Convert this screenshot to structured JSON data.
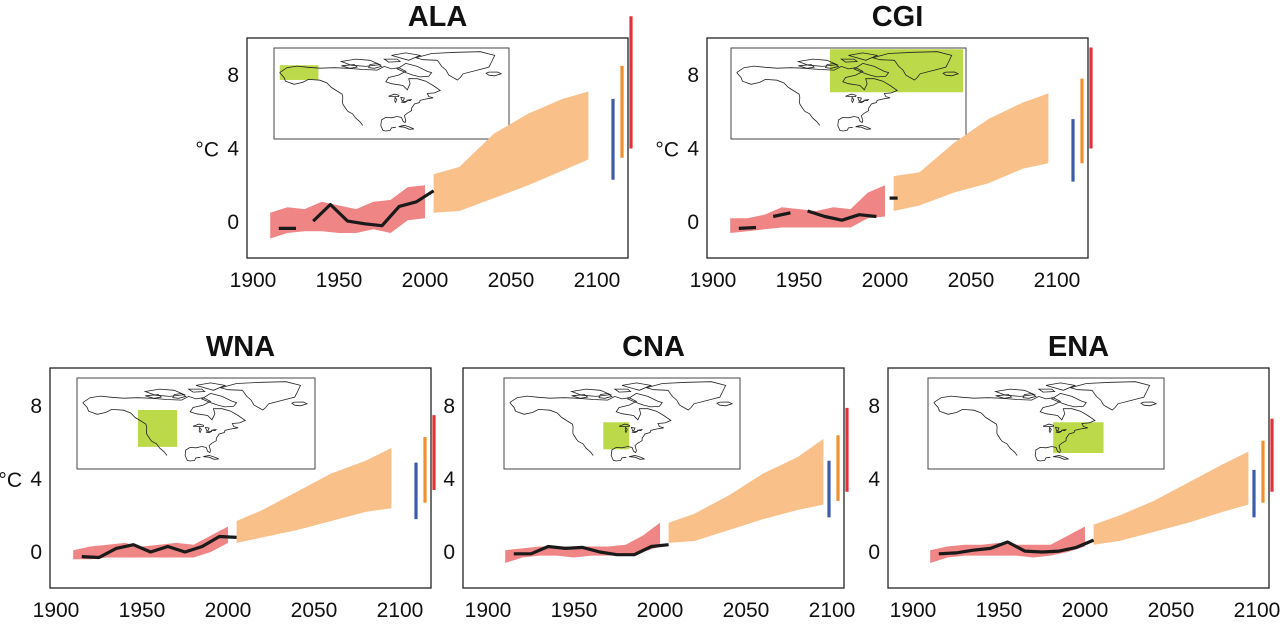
{
  "colors": {
    "observed_line": "#1a1a1a",
    "historical_band": "#ef8585",
    "projection_band": "#f9c08a",
    "range_blue": "#3b5bab",
    "range_orange": "#f1902e",
    "range_red": "#e4323a",
    "region_box": "#bcd94a"
  },
  "chart_data": [
    {
      "type": "area",
      "title": "ALA",
      "ylabel": "°C",
      "xlim": [
        1900,
        2100
      ],
      "ylim": [
        -2,
        10
      ],
      "x_ticks": [
        "1900",
        "1950",
        "2000",
        "2050",
        "2100"
      ],
      "y_ticks": [
        "0",
        "4",
        "8"
      ],
      "observed": {
        "x": [
          1915,
          1925,
          1935,
          1945,
          1955,
          1965,
          1975,
          1985,
          1995,
          2005
        ],
        "y": [
          -0.35,
          -0.35,
          0.05,
          0.95,
          0.05,
          -0.1,
          -0.2,
          0.85,
          1.1,
          1.7
        ],
        "gaps": [
          1
        ]
      },
      "historical_band": {
        "x": [
          1910,
          1920,
          1930,
          1940,
          1950,
          1960,
          1970,
          1980,
          1990,
          2000
        ],
        "upper": [
          0.5,
          0.8,
          0.7,
          1.1,
          0.9,
          0.7,
          1.1,
          1.2,
          1.9,
          2.0
        ],
        "lower": [
          -0.9,
          -0.6,
          -0.5,
          -0.5,
          -0.6,
          -0.6,
          -0.4,
          -0.6,
          0.1,
          0.2
        ]
      },
      "projection_band": {
        "x": [
          2005,
          2020,
          2040,
          2060,
          2080,
          2095
        ],
        "upper": [
          2.6,
          3.0,
          4.8,
          5.9,
          6.7,
          7.1
        ],
        "lower": [
          0.5,
          0.6,
          1.3,
          2.0,
          2.8,
          3.4
        ]
      },
      "ranges": {
        "blue": [
          2.3,
          6.7
        ],
        "orange": [
          3.5,
          8.5
        ],
        "red": [
          4.0,
          11.2
        ]
      },
      "region": {
        "lon": [
          -168,
          -141
        ],
        "lat": [
          60,
          72
        ]
      }
    },
    {
      "type": "area",
      "title": "CGI",
      "ylabel": "°C",
      "xlim": [
        1900,
        2100
      ],
      "ylim": [
        -2,
        10
      ],
      "x_ticks": [
        "1900",
        "1950",
        "2000",
        "2050",
        "2100"
      ],
      "y_ticks": [
        "0",
        "4",
        "8"
      ],
      "observed": {
        "x": [
          1915,
          1925,
          1935,
          1945,
          1955,
          1965,
          1975,
          1985,
          1995,
          2005
        ],
        "y": [
          -0.35,
          -0.3,
          0.3,
          0.5,
          0.6,
          0.3,
          0.1,
          0.4,
          0.3,
          1.3
        ],
        "gaps": [
          1,
          3,
          8
        ]
      },
      "historical_band": {
        "x": [
          1910,
          1920,
          1930,
          1940,
          1950,
          1960,
          1970,
          1980,
          1990,
          2000
        ],
        "upper": [
          0.2,
          0.2,
          0.4,
          0.8,
          0.7,
          0.6,
          0.8,
          0.7,
          1.6,
          2.0
        ],
        "lower": [
          -0.6,
          -0.5,
          -0.4,
          -0.3,
          -0.3,
          -0.3,
          -0.3,
          -0.3,
          0.2,
          0.3
        ]
      },
      "projection_band": {
        "x": [
          2005,
          2020,
          2040,
          2060,
          2080,
          2095
        ],
        "upper": [
          2.5,
          2.7,
          4.3,
          5.6,
          6.5,
          7.0
        ],
        "lower": [
          0.6,
          0.9,
          1.6,
          2.1,
          2.9,
          3.2
        ]
      },
      "ranges": {
        "blue": [
          2.2,
          5.6
        ],
        "orange": [
          3.2,
          7.8
        ],
        "red": [
          4.0,
          9.5
        ]
      },
      "region": {
        "lon": [
          -103,
          -10
        ],
        "lat": [
          50,
          85
        ]
      }
    },
    {
      "type": "area",
      "title": "WNA",
      "ylabel": "°C",
      "xlim": [
        1900,
        2100
      ],
      "ylim": [
        -2,
        10
      ],
      "x_ticks": [
        "1900",
        "1950",
        "2000",
        "2050",
        "2100"
      ],
      "y_ticks": [
        "0",
        "4",
        "8"
      ],
      "observed": {
        "x": [
          1915,
          1925,
          1935,
          1945,
          1955,
          1965,
          1975,
          1985,
          1995,
          2005
        ],
        "y": [
          -0.25,
          -0.3,
          0.2,
          0.4,
          0.0,
          0.3,
          0.0,
          0.3,
          0.85,
          0.8
        ],
        "gaps": []
      },
      "historical_band": {
        "x": [
          1910,
          1920,
          1930,
          1940,
          1950,
          1960,
          1970,
          1980,
          1990,
          2000
        ],
        "upper": [
          0.1,
          0.3,
          0.4,
          0.5,
          0.3,
          0.4,
          0.5,
          0.4,
          0.9,
          1.4
        ],
        "lower": [
          -0.4,
          -0.4,
          -0.3,
          -0.3,
          -0.3,
          -0.3,
          -0.3,
          -0.3,
          0.0,
          0.5
        ]
      },
      "projection_band": {
        "x": [
          2005,
          2020,
          2040,
          2060,
          2080,
          2095
        ],
        "upper": [
          1.7,
          2.3,
          3.3,
          4.3,
          5.0,
          5.7
        ],
        "lower": [
          0.5,
          0.8,
          1.2,
          1.7,
          2.2,
          2.4
        ]
      },
      "ranges": {
        "blue": [
          1.8,
          4.9
        ],
        "orange": [
          2.7,
          6.3
        ],
        "red": [
          3.4,
          7.5
        ]
      },
      "region": {
        "lon": [
          -130,
          -103
        ],
        "lat": [
          30,
          60
        ]
      }
    },
    {
      "type": "area",
      "title": "CNA",
      "ylabel": "",
      "xlim": [
        1900,
        2100
      ],
      "ylim": [
        -2,
        10
      ],
      "x_ticks": [
        "1900",
        "1950",
        "2000",
        "2050",
        "2100"
      ],
      "y_ticks": [
        "0",
        "4",
        "8"
      ],
      "observed": {
        "x": [
          1915,
          1925,
          1935,
          1945,
          1955,
          1965,
          1975,
          1985,
          1995,
          2005
        ],
        "y": [
          -0.1,
          -0.1,
          0.3,
          0.2,
          0.25,
          0.0,
          -0.15,
          -0.15,
          0.3,
          0.4
        ],
        "gaps": []
      },
      "historical_band": {
        "x": [
          1910,
          1920,
          1930,
          1940,
          1950,
          1960,
          1970,
          1980,
          1990,
          2000
        ],
        "upper": [
          0.1,
          0.2,
          0.3,
          0.3,
          0.3,
          0.3,
          0.3,
          0.4,
          0.9,
          1.6
        ],
        "lower": [
          -0.6,
          -0.3,
          -0.2,
          -0.2,
          -0.3,
          -0.2,
          -0.2,
          -0.2,
          0.0,
          0.3
        ]
      },
      "projection_band": {
        "x": [
          2005,
          2020,
          2040,
          2060,
          2080,
          2095
        ],
        "upper": [
          1.6,
          2.1,
          3.1,
          4.3,
          5.2,
          6.2
        ],
        "lower": [
          0.5,
          0.6,
          1.2,
          1.8,
          2.3,
          2.6
        ]
      },
      "ranges": {
        "blue": [
          1.9,
          5.0
        ],
        "orange": [
          2.8,
          6.4
        ],
        "red": [
          3.3,
          7.9
        ]
      },
      "region": {
        "lon": [
          -103,
          -85
        ],
        "lat": [
          28,
          50
        ]
      }
    },
    {
      "type": "area",
      "title": "ENA",
      "ylabel": "",
      "xlim": [
        1900,
        2100
      ],
      "ylim": [
        -2,
        10
      ],
      "x_ticks": [
        "1900",
        "1950",
        "2000",
        "2050",
        "2100"
      ],
      "y_ticks": [
        "0",
        "4",
        "8"
      ],
      "observed": {
        "x": [
          1915,
          1925,
          1935,
          1945,
          1955,
          1965,
          1975,
          1985,
          1995,
          2005
        ],
        "y": [
          -0.1,
          -0.05,
          0.1,
          0.2,
          0.55,
          0.05,
          0.0,
          0.05,
          0.25,
          0.65
        ],
        "gaps": []
      },
      "historical_band": {
        "x": [
          1910,
          1920,
          1930,
          1940,
          1950,
          1960,
          1970,
          1980,
          1990,
          2000
        ],
        "upper": [
          0.1,
          0.3,
          0.4,
          0.4,
          0.5,
          0.4,
          0.4,
          0.4,
          0.9,
          1.4
        ],
        "lower": [
          -0.6,
          -0.3,
          -0.2,
          -0.2,
          -0.2,
          -0.2,
          -0.3,
          -0.2,
          0.0,
          0.3
        ]
      },
      "projection_band": {
        "x": [
          2005,
          2020,
          2040,
          2060,
          2080,
          2095
        ],
        "upper": [
          1.5,
          2.0,
          2.8,
          3.8,
          4.8,
          5.5
        ],
        "lower": [
          0.4,
          0.6,
          1.1,
          1.6,
          2.2,
          2.6
        ]
      },
      "ranges": {
        "blue": [
          1.9,
          4.5
        ],
        "orange": [
          2.7,
          6.1
        ],
        "red": [
          3.3,
          7.3
        ]
      },
      "region": {
        "lon": [
          -85,
          -50
        ],
        "lat": [
          25,
          50
        ]
      }
    }
  ]
}
